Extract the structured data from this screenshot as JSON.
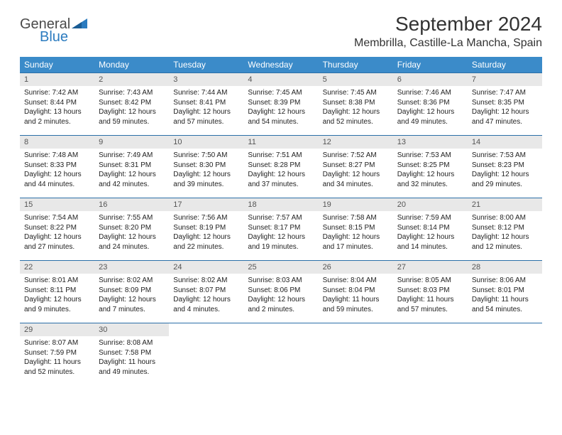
{
  "brand": {
    "name1": "General",
    "name2": "Blue"
  },
  "title": "September 2024",
  "location": "Membrilla, Castille-La Mancha, Spain",
  "header_bg": "#3b8bc9",
  "days_of_week": [
    "Sunday",
    "Monday",
    "Tuesday",
    "Wednesday",
    "Thursday",
    "Friday",
    "Saturday"
  ],
  "cells": [
    {
      "n": "1",
      "sunrise": "7:42 AM",
      "sunset": "8:44 PM",
      "daylight": "13 hours and 2 minutes."
    },
    {
      "n": "2",
      "sunrise": "7:43 AM",
      "sunset": "8:42 PM",
      "daylight": "12 hours and 59 minutes."
    },
    {
      "n": "3",
      "sunrise": "7:44 AM",
      "sunset": "8:41 PM",
      "daylight": "12 hours and 57 minutes."
    },
    {
      "n": "4",
      "sunrise": "7:45 AM",
      "sunset": "8:39 PM",
      "daylight": "12 hours and 54 minutes."
    },
    {
      "n": "5",
      "sunrise": "7:45 AM",
      "sunset": "8:38 PM",
      "daylight": "12 hours and 52 minutes."
    },
    {
      "n": "6",
      "sunrise": "7:46 AM",
      "sunset": "8:36 PM",
      "daylight": "12 hours and 49 minutes."
    },
    {
      "n": "7",
      "sunrise": "7:47 AM",
      "sunset": "8:35 PM",
      "daylight": "12 hours and 47 minutes."
    },
    {
      "n": "8",
      "sunrise": "7:48 AM",
      "sunset": "8:33 PM",
      "daylight": "12 hours and 44 minutes."
    },
    {
      "n": "9",
      "sunrise": "7:49 AM",
      "sunset": "8:31 PM",
      "daylight": "12 hours and 42 minutes."
    },
    {
      "n": "10",
      "sunrise": "7:50 AM",
      "sunset": "8:30 PM",
      "daylight": "12 hours and 39 minutes."
    },
    {
      "n": "11",
      "sunrise": "7:51 AM",
      "sunset": "8:28 PM",
      "daylight": "12 hours and 37 minutes."
    },
    {
      "n": "12",
      "sunrise": "7:52 AM",
      "sunset": "8:27 PM",
      "daylight": "12 hours and 34 minutes."
    },
    {
      "n": "13",
      "sunrise": "7:53 AM",
      "sunset": "8:25 PM",
      "daylight": "12 hours and 32 minutes."
    },
    {
      "n": "14",
      "sunrise": "7:53 AM",
      "sunset": "8:23 PM",
      "daylight": "12 hours and 29 minutes."
    },
    {
      "n": "15",
      "sunrise": "7:54 AM",
      "sunset": "8:22 PM",
      "daylight": "12 hours and 27 minutes."
    },
    {
      "n": "16",
      "sunrise": "7:55 AM",
      "sunset": "8:20 PM",
      "daylight": "12 hours and 24 minutes."
    },
    {
      "n": "17",
      "sunrise": "7:56 AM",
      "sunset": "8:19 PM",
      "daylight": "12 hours and 22 minutes."
    },
    {
      "n": "18",
      "sunrise": "7:57 AM",
      "sunset": "8:17 PM",
      "daylight": "12 hours and 19 minutes."
    },
    {
      "n": "19",
      "sunrise": "7:58 AM",
      "sunset": "8:15 PM",
      "daylight": "12 hours and 17 minutes."
    },
    {
      "n": "20",
      "sunrise": "7:59 AM",
      "sunset": "8:14 PM",
      "daylight": "12 hours and 14 minutes."
    },
    {
      "n": "21",
      "sunrise": "8:00 AM",
      "sunset": "8:12 PM",
      "daylight": "12 hours and 12 minutes."
    },
    {
      "n": "22",
      "sunrise": "8:01 AM",
      "sunset": "8:11 PM",
      "daylight": "12 hours and 9 minutes."
    },
    {
      "n": "23",
      "sunrise": "8:02 AM",
      "sunset": "8:09 PM",
      "daylight": "12 hours and 7 minutes."
    },
    {
      "n": "24",
      "sunrise": "8:02 AM",
      "sunset": "8:07 PM",
      "daylight": "12 hours and 4 minutes."
    },
    {
      "n": "25",
      "sunrise": "8:03 AM",
      "sunset": "8:06 PM",
      "daylight": "12 hours and 2 minutes."
    },
    {
      "n": "26",
      "sunrise": "8:04 AM",
      "sunset": "8:04 PM",
      "daylight": "11 hours and 59 minutes."
    },
    {
      "n": "27",
      "sunrise": "8:05 AM",
      "sunset": "8:03 PM",
      "daylight": "11 hours and 57 minutes."
    },
    {
      "n": "28",
      "sunrise": "8:06 AM",
      "sunset": "8:01 PM",
      "daylight": "11 hours and 54 minutes."
    },
    {
      "n": "29",
      "sunrise": "8:07 AM",
      "sunset": "7:59 PM",
      "daylight": "11 hours and 52 minutes."
    },
    {
      "n": "30",
      "sunrise": "8:08 AM",
      "sunset": "7:58 PM",
      "daylight": "11 hours and 49 minutes."
    }
  ],
  "labels": {
    "sunrise": "Sunrise: ",
    "sunset": "Sunset: ",
    "daylight": "Daylight: "
  }
}
